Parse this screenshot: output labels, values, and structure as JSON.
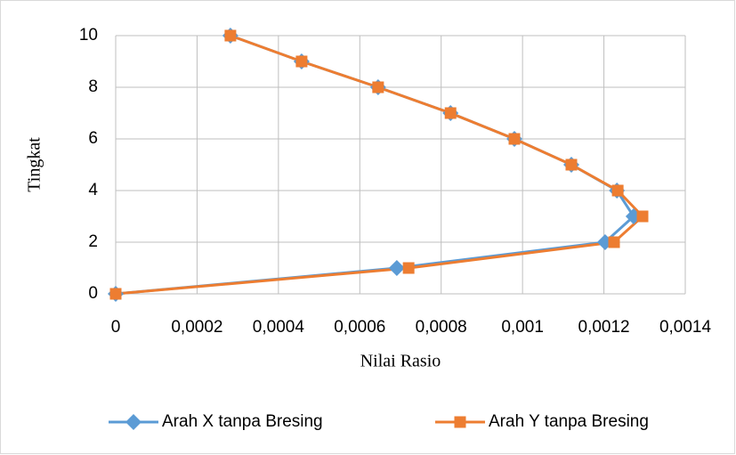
{
  "chart_data": {
    "type": "scatter",
    "xlabel": "Nilai Rasio",
    "ylabel": "Tingkat",
    "xlim": [
      0,
      0.0014
    ],
    "ylim": [
      0,
      10
    ],
    "xticks": [
      0,
      {
        "value": 0.0002,
        "label": "0,0002"
      },
      {
        "value": 0.0004,
        "label": "0,0004"
      },
      {
        "value": 0.0006,
        "label": "0,0006"
      },
      {
        "value": 0.0008,
        "label": "0,0008"
      },
      {
        "value": 0.001,
        "label": "0,001"
      },
      {
        "value": 0.0012,
        "label": "0,0012"
      },
      {
        "value": 0.0014,
        "label": "0,0014"
      }
    ],
    "yticks": [
      0,
      2,
      4,
      6,
      8,
      10
    ],
    "grid": true,
    "legend": "bottom",
    "series": [
      {
        "name": "Arah X tanpa Bresing",
        "color": "#5b9bd5",
        "marker": "diamond",
        "x": [
          0,
          0.000691,
          0.001203,
          0.001273,
          0.001232,
          0.00112,
          0.00098,
          0.000823,
          0.000645,
          0.000457,
          0.000282
        ],
        "values": [
          0,
          1,
          2,
          3,
          4,
          5,
          6,
          7,
          8,
          9,
          10
        ]
      },
      {
        "name": "Arah Y tanpa Bresing",
        "color": "#ed7d31",
        "marker": "square",
        "x": [
          0,
          0.00072,
          0.001225,
          0.001295,
          0.001234,
          0.00112,
          0.00098,
          0.000823,
          0.000645,
          0.000457,
          0.000282
        ],
        "values": [
          0,
          1,
          2,
          3,
          4,
          5,
          6,
          7,
          8,
          9,
          10
        ]
      }
    ]
  }
}
